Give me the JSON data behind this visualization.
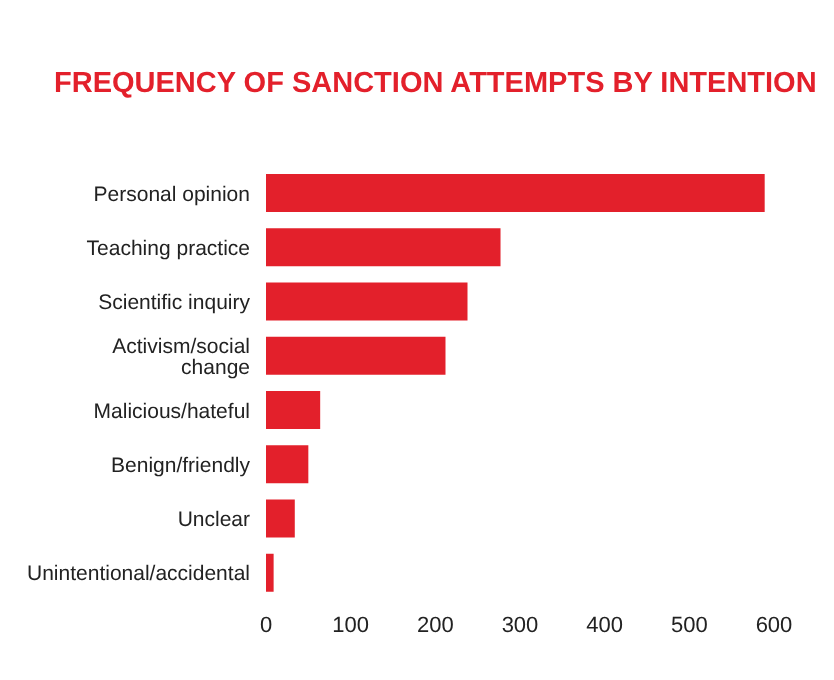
{
  "chart_data": {
    "type": "bar",
    "orientation": "horizontal",
    "title": "FREQUENCY OF SANCTION ATTEMPTS BY INTENTION",
    "categories": [
      "Personal opinion",
      "Teaching practice",
      "Scientific inquiry",
      "Activism/social change",
      "Malicious/hateful",
      "Benign/friendly",
      "Unclear",
      "Unintentional/accidental"
    ],
    "values": [
      589,
      277,
      238,
      212,
      64,
      50,
      34,
      9
    ],
    "color": "#e3202b",
    "xlim": [
      0,
      600
    ],
    "xticks": [
      0,
      100,
      200,
      300,
      400,
      500,
      600
    ],
    "grid": false,
    "legend": false
  }
}
